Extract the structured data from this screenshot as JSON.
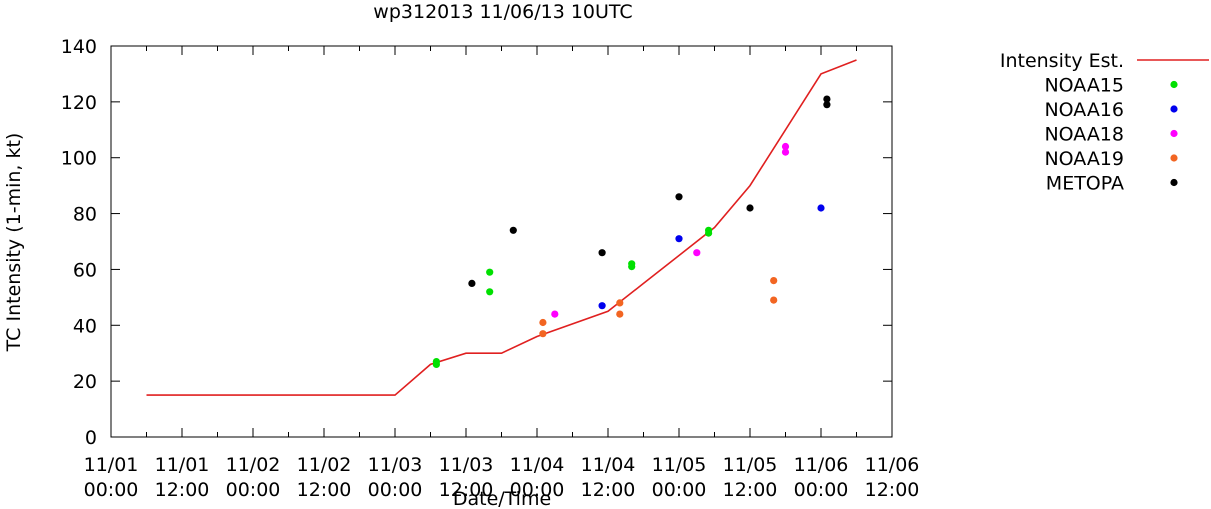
{
  "chart_data": {
    "type": "scatter",
    "title": "wp312013 11/06/13 10UTC",
    "xlabel": "Date/Time",
    "ylabel": "TC Intensity (1-min, kt)",
    "xlim_hours": [
      0,
      132
    ],
    "ylim": [
      0,
      140
    ],
    "yticks": [
      0,
      20,
      40,
      60,
      80,
      100,
      120,
      140
    ],
    "xticks": [
      {
        "hours": 0,
        "date": "11/01",
        "time": "00:00"
      },
      {
        "hours": 12,
        "date": "11/01",
        "time": "12:00"
      },
      {
        "hours": 24,
        "date": "11/02",
        "time": "00:00"
      },
      {
        "hours": 36,
        "date": "11/02",
        "time": "12:00"
      },
      {
        "hours": 48,
        "date": "11/03",
        "time": "00:00"
      },
      {
        "hours": 60,
        "date": "11/03",
        "time": "12:00"
      },
      {
        "hours": 72,
        "date": "11/04",
        "time": "00:00"
      },
      {
        "hours": 84,
        "date": "11/04",
        "time": "12:00"
      },
      {
        "hours": 96,
        "date": "11/05",
        "time": "00:00"
      },
      {
        "hours": 108,
        "date": "11/05",
        "time": "12:00"
      },
      {
        "hours": 120,
        "date": "11/06",
        "time": "00:00"
      },
      {
        "hours": 132,
        "date": "11/06",
        "time": "12:00"
      }
    ],
    "line_series": {
      "name": "Intensity Est.",
      "color": "#e02020",
      "points": [
        [
          6,
          15
        ],
        [
          48,
          15
        ],
        [
          54,
          26
        ],
        [
          60,
          30
        ],
        [
          66,
          30
        ],
        [
          72,
          36
        ],
        [
          84,
          45
        ],
        [
          90,
          55
        ],
        [
          96,
          65
        ],
        [
          102,
          75
        ],
        [
          108,
          90
        ],
        [
          114,
          110
        ],
        [
          120,
          130
        ],
        [
          126,
          135
        ]
      ]
    },
    "series": [
      {
        "name": "NOAA15",
        "color": "#00e000",
        "points": [
          [
            55,
            26
          ],
          [
            55,
            27
          ],
          [
            64,
            52
          ],
          [
            64,
            59
          ],
          [
            88,
            61
          ],
          [
            88,
            62
          ],
          [
            101,
            73
          ],
          [
            101,
            74
          ]
        ]
      },
      {
        "name": "NOAA16",
        "color": "#0000ee",
        "points": [
          [
            83,
            47
          ],
          [
            96,
            71
          ],
          [
            120,
            82
          ]
        ]
      },
      {
        "name": "NOAA18",
        "color": "#ff00ff",
        "points": [
          [
            75,
            44
          ],
          [
            99,
            66
          ],
          [
            114,
            102
          ],
          [
            114,
            104
          ]
        ]
      },
      {
        "name": "NOAA19",
        "color": "#f26522",
        "points": [
          [
            73,
            37
          ],
          [
            73,
            41
          ],
          [
            86,
            44
          ],
          [
            86,
            48
          ],
          [
            112,
            49
          ],
          [
            112,
            56
          ]
        ]
      },
      {
        "name": "METOPA",
        "color": "#000000",
        "points": [
          [
            61,
            55
          ],
          [
            68,
            74
          ],
          [
            83,
            66
          ],
          [
            96,
            86
          ],
          [
            108,
            82
          ],
          [
            121,
            119
          ],
          [
            121,
            121
          ]
        ]
      }
    ]
  }
}
